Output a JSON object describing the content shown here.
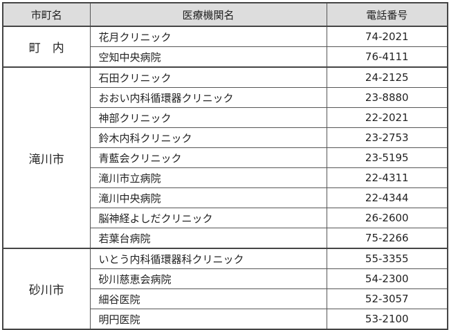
{
  "headers": {
    "city": "市町名",
    "institution": "医療機関名",
    "phone": "電話番号"
  },
  "groups": [
    {
      "city": "町　内",
      "rows": [
        {
          "name": "花月クリニック",
          "phone": "74-2021"
        },
        {
          "name": "空知中央病院",
          "phone": "76-4111"
        }
      ]
    },
    {
      "city": "滝川市",
      "rows": [
        {
          "name": "石田クリニック",
          "phone": "24-2125"
        },
        {
          "name": "おおい内科循環器クリニック",
          "phone": "23-8880"
        },
        {
          "name": "神部クリニック",
          "phone": "22-2021"
        },
        {
          "name": "鈴木内科クリニック",
          "phone": "23-2753"
        },
        {
          "name": "青藍会クリニック",
          "phone": "23-5195"
        },
        {
          "name": "滝川市立病院",
          "phone": "22-4311"
        },
        {
          "name": "滝川中央病院",
          "phone": "22-4344"
        },
        {
          "name": "脳神経よしだクリニック",
          "phone": "26-2600"
        },
        {
          "name": "若葉台病院",
          "phone": "75-2266"
        }
      ]
    },
    {
      "city": "砂川市",
      "rows": [
        {
          "name": "いとう内科循環器科クリニック",
          "phone": "55-3355"
        },
        {
          "name": "砂川慈恵会病院",
          "phone": "54-2300"
        },
        {
          "name": "細谷医院",
          "phone": "52-3057"
        },
        {
          "name": "明円医院",
          "phone": "53-2100"
        }
      ]
    }
  ]
}
